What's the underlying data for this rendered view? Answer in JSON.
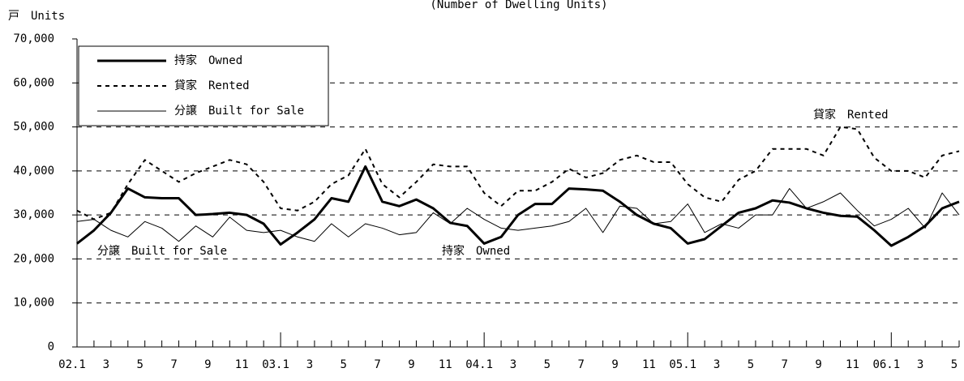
{
  "chart_data": {
    "type": "line",
    "title": "(Number of Dwelling Units)",
    "y_label": "戸　Units",
    "categories": [
      "02.1",
      null,
      "3",
      null,
      "5",
      null,
      "7",
      null,
      "9",
      null,
      "11",
      null,
      "03.1",
      null,
      "3",
      null,
      "5",
      null,
      "7",
      null,
      "9",
      null,
      "11",
      null,
      "04.1",
      null,
      "3",
      null,
      "5",
      null,
      "7",
      null,
      "9",
      null,
      "11",
      null,
      "05.1",
      null,
      "3",
      null,
      "5",
      null,
      "7",
      null,
      "9",
      null,
      "11",
      null,
      "06.1",
      null,
      "3",
      null,
      "5"
    ],
    "series": [
      {
        "name": "持家　Owned",
        "color": "#000000",
        "line_width": 3,
        "dash": "none",
        "values": [
          23500,
          26500,
          30500,
          36000,
          34000,
          33800,
          33800,
          30000,
          30200,
          30500,
          30000,
          28000,
          23300,
          26000,
          29000,
          33800,
          33000,
          41000,
          33000,
          32000,
          33500,
          31500,
          28200,
          27500,
          23500,
          25000,
          30000,
          32500,
          32500,
          36000,
          35800,
          35500,
          33000,
          30000,
          28000,
          27000,
          23500,
          24500,
          27500,
          30500,
          31500,
          33300,
          32800,
          31500,
          30500,
          29800,
          29600,
          26500,
          23000,
          25000,
          27500,
          31500,
          33000
        ]
      },
      {
        "name": "貸家　Rented",
        "color": "#000000",
        "line_width": 2,
        "dash": "5,5",
        "values": [
          31000,
          29000,
          30500,
          37000,
          42500,
          40000,
          37500,
          39500,
          41000,
          42500,
          41500,
          37500,
          31500,
          31000,
          33000,
          37000,
          39000,
          45000,
          37000,
          34000,
          37500,
          41500,
          41000,
          41000,
          35000,
          32000,
          35500,
          35500,
          37500,
          40500,
          38500,
          39500,
          42500,
          43500,
          42000,
          42000,
          37000,
          34000,
          33000,
          38000,
          40000,
          45000,
          45000,
          45000,
          43500,
          50000,
          49500,
          43000,
          40000,
          40000,
          38500,
          43500,
          44500
        ]
      },
      {
        "name": "分譲　Built for Sale",
        "color": "#000000",
        "line_width": 1,
        "dash": "none",
        "values": [
          28500,
          29000,
          26500,
          25000,
          28500,
          27000,
          24000,
          27500,
          25000,
          29500,
          26500,
          26000,
          26500,
          25000,
          24000,
          28000,
          25000,
          28000,
          27000,
          25500,
          26000,
          30500,
          28000,
          31500,
          29000,
          27000,
          26500,
          27000,
          27500,
          28500,
          31500,
          26000,
          32000,
          31500,
          28000,
          28500,
          32500,
          26000,
          28000,
          27000,
          30000,
          30000,
          36000,
          31500,
          33000,
          35000,
          31000,
          27500,
          29000,
          31500,
          27000,
          35000,
          30000
        ]
      }
    ],
    "annotations": [
      "分譲　Built for Sale",
      "持家　Owned",
      "貸家　Rented"
    ],
    "ylim": [
      0,
      70000
    ],
    "yticks": [
      0,
      {
        "value": 10000,
        "label": "10,000"
      },
      {
        "value": 20000,
        "label": "20,000"
      },
      {
        "value": 30000,
        "label": "30,000"
      },
      {
        "value": 40000,
        "label": "40,000"
      },
      {
        "value": 50000,
        "label": "50,000"
      },
      {
        "value": 60000,
        "label": "60,000"
      },
      {
        "value": 70000,
        "label": "70,000"
      }
    ],
    "grid": true,
    "legend": "upper left"
  }
}
